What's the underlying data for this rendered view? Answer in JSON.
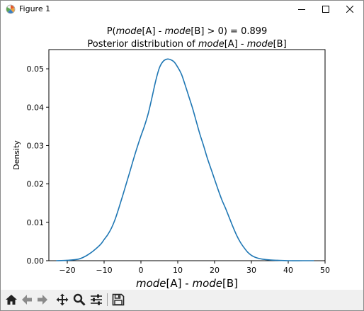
{
  "window": {
    "title": "Figure 1",
    "icon": "matplotlib-logo-icon",
    "controls": [
      "minimize-icon",
      "maximize-icon",
      "close-icon"
    ]
  },
  "toolbar": {
    "buttons": [
      "home-icon",
      "back-arrow-icon",
      "forward-arrow-icon",
      "pan-icon",
      "zoom-icon",
      "configure-subplots-icon",
      "save-icon"
    ]
  },
  "chart_data": {
    "type": "line",
    "title_prefix": "P(",
    "title_mode1": "mode",
    "title_mid": "[A] - ",
    "title_mode2": "mode",
    "title_suffix": "[B] > 0) = 0.899",
    "subtitle_prefix": "Posterior distribution of ",
    "subtitle_mode1": "mode",
    "subtitle_mid": "[A] - ",
    "subtitle_mode2": "mode",
    "subtitle_suffix": "[B]",
    "xlabel_mode1": "mode",
    "xlabel_mid": "[A] - ",
    "xlabel_mode2": "mode",
    "xlabel_suffix": "[B]",
    "ylabel": "Density",
    "xlim": [
      -25,
      50
    ],
    "ylim": [
      0,
      0.055
    ],
    "xticks": [
      -20,
      -10,
      0,
      10,
      20,
      30,
      40,
      50
    ],
    "xtick_labels": [
      "−20",
      "−10",
      "0",
      "10",
      "20",
      "30",
      "40",
      "50"
    ],
    "yticks": [
      0,
      0.01,
      0.02,
      0.03,
      0.04,
      0.05
    ],
    "ytick_labels": [
      "0.00",
      "0.01",
      "0.02",
      "0.03",
      "0.04",
      "0.05"
    ],
    "grid": false,
    "color": "#1f77b4",
    "series": [
      {
        "x": [
          -23,
          -20,
          -17,
          -15,
          -13,
          -11,
          -10,
          -9,
          -8,
          -7,
          -6,
          -5,
          -4,
          -3,
          -2,
          -1,
          0,
          1,
          2,
          3,
          4,
          5,
          6,
          7,
          8,
          9,
          10,
          11,
          12,
          13,
          14,
          15,
          16,
          17,
          18,
          19,
          20,
          21,
          22,
          23,
          24,
          25,
          26,
          27,
          28,
          29,
          30,
          31,
          32,
          33,
          35,
          37,
          40,
          44,
          47
        ],
        "y": [
          0.0,
          0.0001,
          0.0004,
          0.0012,
          0.0025,
          0.0042,
          0.0055,
          0.0068,
          0.0085,
          0.0108,
          0.0137,
          0.0168,
          0.02,
          0.0232,
          0.0265,
          0.0296,
          0.0325,
          0.0352,
          0.0384,
          0.0425,
          0.0468,
          0.0502,
          0.0519,
          0.0525,
          0.0524,
          0.0518,
          0.0504,
          0.0486,
          0.0458,
          0.0428,
          0.0398,
          0.0364,
          0.033,
          0.03,
          0.0268,
          0.024,
          0.0212,
          0.0184,
          0.0158,
          0.0136,
          0.0112,
          0.0088,
          0.0066,
          0.0048,
          0.0034,
          0.0022,
          0.0014,
          0.0009,
          0.0006,
          0.0004,
          0.0002,
          0.0001,
          0.0,
          0.0,
          0.0
        ]
      }
    ]
  }
}
